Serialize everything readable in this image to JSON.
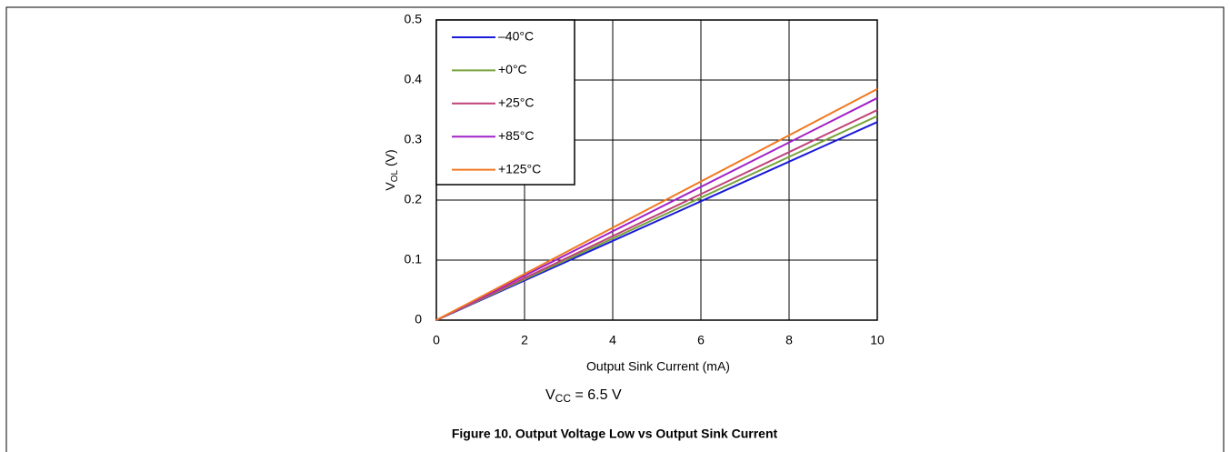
{
  "chart_data": {
    "type": "line",
    "x": [
      0,
      10
    ],
    "series": [
      {
        "name": "–40°C",
        "color": "#1a1ad8",
        "values": [
          0,
          0.33
        ]
      },
      {
        "name": "+0°C",
        "color": "#77a33c",
        "values": [
          0,
          0.34
        ]
      },
      {
        "name": "+25°C",
        "color": "#c0407a",
        "values": [
          0,
          0.35
        ]
      },
      {
        "name": "+85°C",
        "color": "#a020c8",
        "values": [
          0,
          0.37
        ]
      },
      {
        "name": "+125°C",
        "color": "#f07820",
        "values": [
          0,
          0.385
        ]
      }
    ],
    "xlim": [
      0,
      10
    ],
    "xticks": [
      0,
      2,
      4,
      6,
      8,
      10
    ],
    "ylim": [
      0,
      0.5
    ],
    "yticks": [
      0,
      0.1,
      0.2,
      0.3,
      0.4,
      0.5
    ],
    "grid": true,
    "legend": "upper-left",
    "x_label": "Output Sink Current (mA)",
    "y_label": {
      "main": "V",
      "sub": "OL",
      "rest": " (V)"
    },
    "annotation": {
      "main": "V",
      "sub": "CC",
      "rest": " = 6.5 V"
    },
    "caption": "Figure 10. Output Voltage Low vs Output Sink Current"
  }
}
